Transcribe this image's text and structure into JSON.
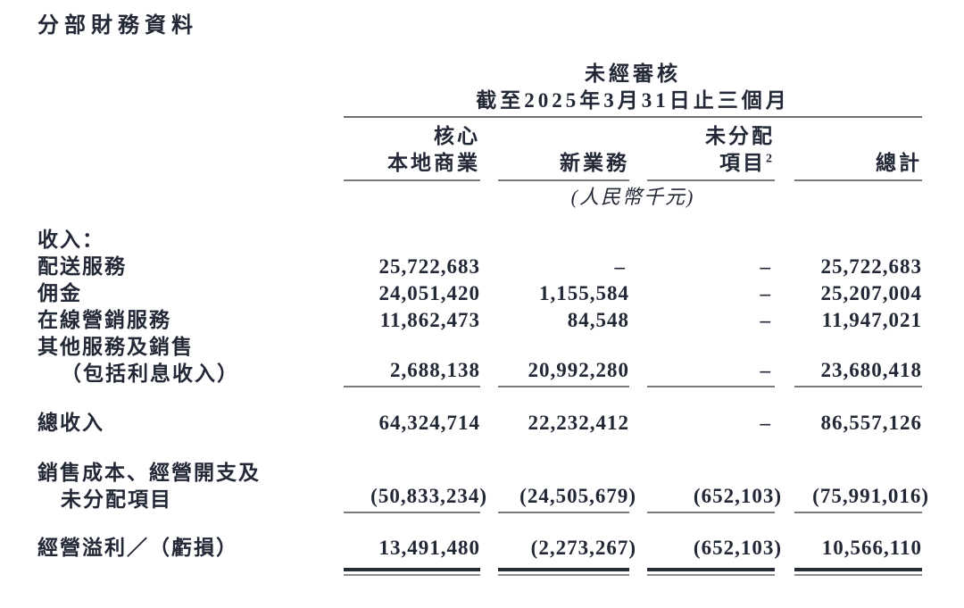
{
  "title": "分部財務資料",
  "table": {
    "period": {
      "line1": "未經審核",
      "line2": "截至2025年3月31日止三個月"
    },
    "columns": [
      {
        "line1": "核心",
        "line2": "本地商業"
      },
      {
        "line1": "",
        "line2": "新業務"
      },
      {
        "line1": "未分配",
        "line2": "項目",
        "sup": "2"
      },
      {
        "line1": "",
        "line2": "總計"
      }
    ],
    "unit_note": "(人民幣千元)",
    "rows": [
      {
        "label": "收入：",
        "values": [
          "",
          "",
          "",
          ""
        ]
      },
      {
        "label": "配送服務",
        "values": [
          "25,722,683",
          "–",
          "–",
          "25,722,683"
        ]
      },
      {
        "label": "佣金",
        "values": [
          "24,051,420",
          "1,155,584",
          "–",
          "25,207,004"
        ]
      },
      {
        "label": "在線營銷服務",
        "values": [
          "11,862,473",
          "84,548",
          "–",
          "11,947,021"
        ]
      },
      {
        "label_line1": "其他服務及銷售",
        "label_line2": "（包括利息收入）",
        "values": [
          "2,688,138",
          "20,992,280",
          "–",
          "23,680,418"
        ]
      },
      {
        "label": "總收入",
        "values": [
          "64,324,714",
          "22,232,412",
          "–",
          "86,557,126"
        ]
      },
      {
        "label_line1": "銷售成本、經營開支及",
        "label_line2": "未分配項目",
        "values": [
          "(50,833,234)",
          "(24,505,679)",
          "(652,103)",
          "(75,991,016)"
        ]
      },
      {
        "label": "經營溢利／（虧損）",
        "values": [
          "13,491,480",
          "(2,273,267)",
          "(652,103)",
          "10,566,110"
        ]
      }
    ]
  },
  "colors": {
    "text": "#232836",
    "rule_gray": "#7a7a7a",
    "rule_dark": "#262b36",
    "background": "#ffffff"
  }
}
